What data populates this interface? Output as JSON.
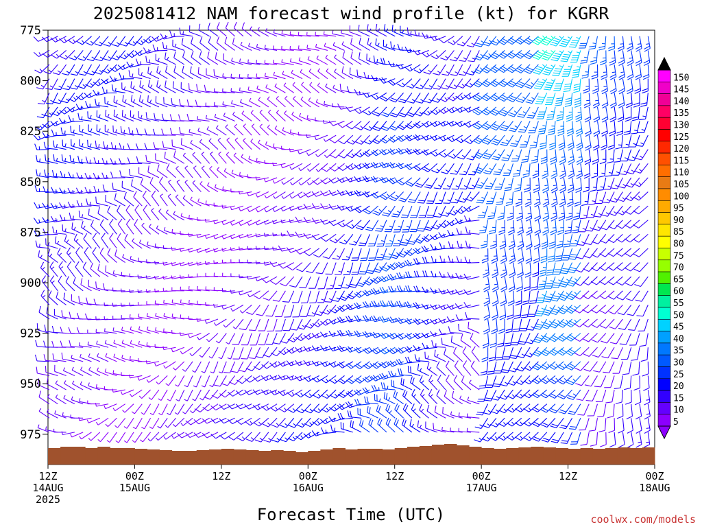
{
  "chart_data": {
    "type": "wind-barb-profile",
    "title": "2025081412 NAM forecast wind profile (kt) for KGRR",
    "xlabel": "Forecast Time (UTC)",
    "ylabel": "",
    "y_axis": {
      "ticks": [
        "775",
        "800",
        "825",
        "850",
        "875",
        "900",
        "925",
        "950",
        "975"
      ],
      "range": [
        775,
        990
      ],
      "reversed": true
    },
    "x_axis": {
      "range_hours": [
        0,
        84
      ],
      "ticks": [
        {
          "hour": 0,
          "line1": "12Z",
          "line2": "14AUG",
          "line3": "2025"
        },
        {
          "hour": 12,
          "line1": "00Z",
          "line2": "15AUG",
          "line3": ""
        },
        {
          "hour": 24,
          "line1": "12Z",
          "line2": "",
          "line3": ""
        },
        {
          "hour": 36,
          "line1": "00Z",
          "line2": "16AUG",
          "line3": ""
        },
        {
          "hour": 48,
          "line1": "12Z",
          "line2": "",
          "line3": ""
        },
        {
          "hour": 60,
          "line1": "00Z",
          "line2": "17AUG",
          "line3": ""
        },
        {
          "hour": 72,
          "line1": "12Z",
          "line2": "",
          "line3": ""
        },
        {
          "hour": 84,
          "line1": "00Z",
          "line2": "18AUG",
          "line3": ""
        }
      ]
    },
    "colorbar": {
      "unit": "kt",
      "labels": [
        "150",
        "145",
        "140",
        "135",
        "130",
        "125",
        "120",
        "115",
        "110",
        "105",
        "100",
        "95",
        "90",
        "85",
        "80",
        "75",
        "70",
        "65",
        "60",
        "55",
        "50",
        "45",
        "40",
        "35",
        "30",
        "25",
        "20",
        "15",
        "10",
        "5"
      ],
      "colors": [
        "#ff00ff",
        "#f000c8",
        "#f00096",
        "#ff0064",
        "#ff0032",
        "#ff0000",
        "#ff2800",
        "#ff5000",
        "#ff6e00",
        "#e87b14",
        "#ff8c00",
        "#ffaa00",
        "#ffc800",
        "#ffe600",
        "#ffff00",
        "#c8ff00",
        "#96ff00",
        "#50f000",
        "#00e650",
        "#00f0a0",
        "#00ffd2",
        "#00d2ff",
        "#00a0ff",
        "#0078ff",
        "#005aff",
        "#0032ff",
        "#0000ff",
        "#3200ff",
        "#6400ff",
        "#8c00ff"
      ]
    },
    "surface_color": "#a0522d",
    "credit": "coolwx.com/models"
  }
}
